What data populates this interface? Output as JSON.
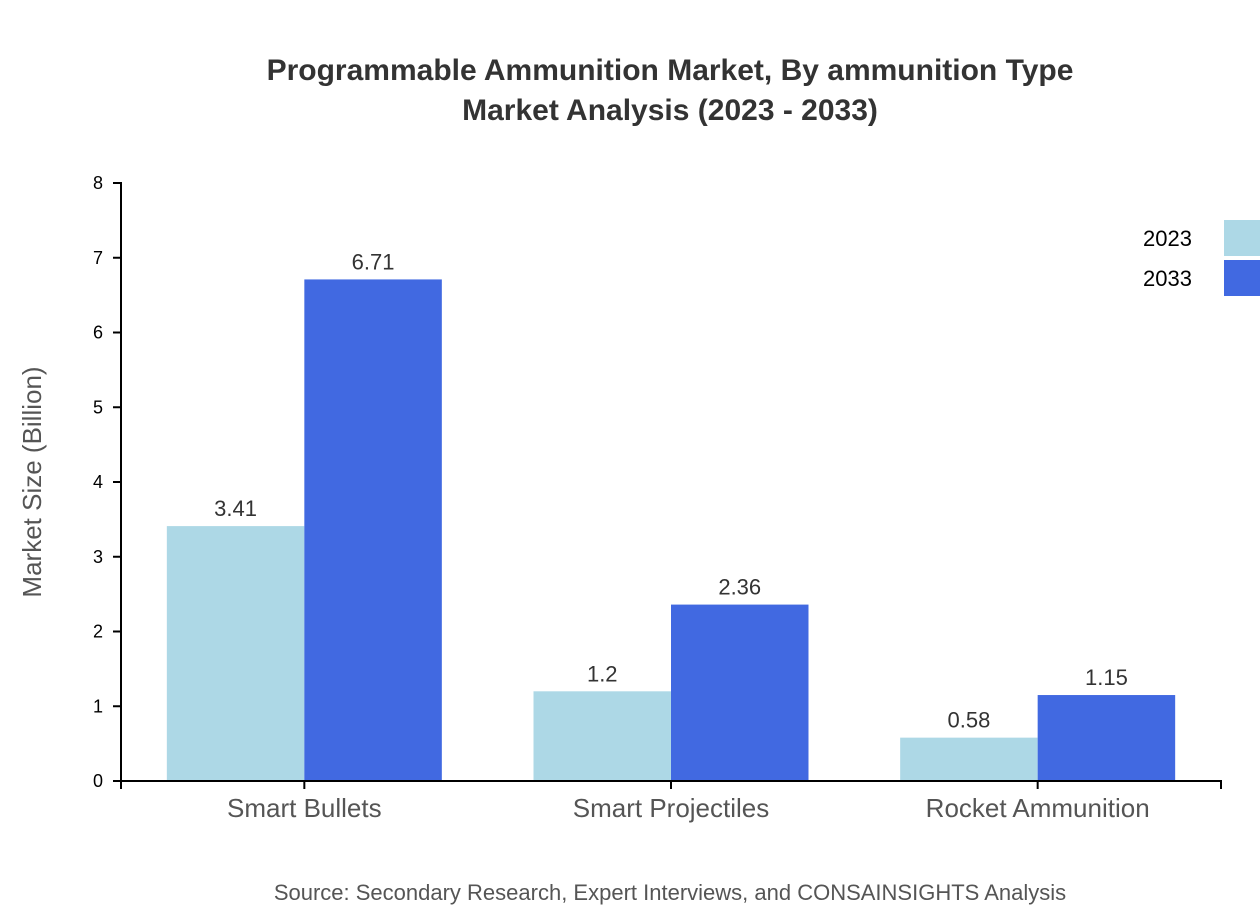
{
  "chart_data": {
    "type": "bar",
    "title": "Programmable Ammunition Market, By ammunition Type",
    "subtitle": "Market Analysis (2023 - 2033)",
    "xlabel": "",
    "ylabel": "Market Size (Billion)",
    "ylim": [
      0,
      8
    ],
    "yticks": [
      0,
      1,
      2,
      3,
      4,
      5,
      6,
      7,
      8
    ],
    "categories": [
      "Smart Bullets",
      "Smart Projectiles",
      "Rocket Ammunition"
    ],
    "series": [
      {
        "name": "2023",
        "color": "#ADD8E6",
        "values": [
          3.41,
          1.2,
          0.58
        ]
      },
      {
        "name": "2033",
        "color": "#4169E1",
        "values": [
          6.71,
          2.36,
          1.15
        ]
      }
    ],
    "grid": false,
    "legend": "top-right",
    "source": "Source: Secondary Research, Expert Interviews, and CONSAINSIGHTS Analysis"
  }
}
